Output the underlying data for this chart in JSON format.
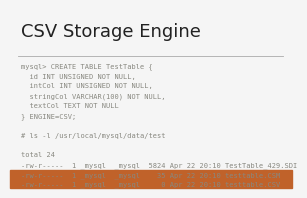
{
  "title": "CSV Storage Engine",
  "title_color": "#222222",
  "title_fontsize": 13,
  "bg_color": "#f5f5f5",
  "bottom_bar_color": "#c0622a",
  "bottom_bar_height": 0.1,
  "divider_color": "#aaaaaa",
  "code_color": "#888880",
  "code_fontsize": 5.0,
  "code_lines": [
    "mysql> CREATE TABLE TestTable {",
    "  id INT UNSIGNED NOT NULL,",
    "  intCol INT UNSIGNED NOT NULL,",
    "  stringCol VARCHAR(100) NOT NULL,",
    "  textCol TEXT NOT NULL",
    "} ENGINE=CSV;",
    "",
    "# ls -l /usr/local/mysql/data/test",
    "",
    "total 24",
    "-rw-r-----  1 _mysql  _mysql  5824 Apr 22 20:10 TestTable_429.SDI",
    "-rw-r-----  1 _mysql  _mysql    35 Apr 22 20:10 testtable.CSM",
    "-rw-r-----  1 _mysql  _mysql     0 Apr 22 20:10 testtable.CSV"
  ]
}
